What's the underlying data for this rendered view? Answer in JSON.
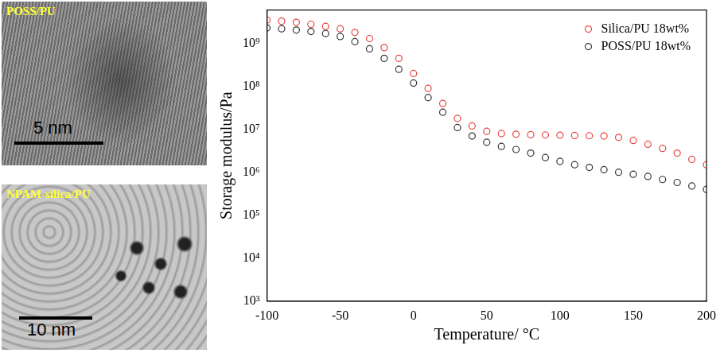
{
  "panels": [
    {
      "label": "POSS/PU",
      "scale_bar": "5 nm"
    },
    {
      "label": "NPAM-silica/PU",
      "scale_bar": "10 nm"
    }
  ],
  "chart_data": {
    "type": "scatter",
    "x_label": "Temperature/ °C",
    "y_label": "Storage modulus/Pa",
    "log": "y",
    "grid": false,
    "legend": "upper right",
    "marker": "circle",
    "xlim": [
      -100,
      200
    ],
    "xticks": [
      -100,
      -50,
      0,
      50,
      100,
      150,
      200
    ],
    "ylim": [
      1000,
      6000000000
    ],
    "yticks": [
      {
        "value": 1000,
        "label": "10³"
      },
      {
        "value": 10000,
        "label": "10⁴"
      },
      {
        "value": 100000,
        "label": "10⁵"
      },
      {
        "value": 1000000,
        "label": "10⁶"
      },
      {
        "value": 10000000,
        "label": "10⁷"
      },
      {
        "value": 100000000,
        "label": "10⁸"
      },
      {
        "value": 1000000000,
        "label": "10⁹"
      }
    ],
    "series": [
      {
        "name": "Silica/PU 18wt%",
        "color": "#e8433f",
        "x": [
          -100,
          -90,
          -80,
          -70,
          -60,
          -50,
          -40,
          -30,
          -20,
          -10,
          0,
          10,
          20,
          30,
          40,
          50,
          60,
          70,
          80,
          90,
          100,
          110,
          120,
          130,
          140,
          150,
          160,
          170,
          180,
          190,
          200
        ],
        "values": [
          3500000000,
          3300000000,
          3100000000,
          2800000000,
          2500000000,
          2200000000,
          1800000000,
          1300000000,
          800000000,
          450000000,
          200000000,
          90000000,
          40000000,
          18000000,
          12000000,
          9000000,
          8000000,
          7700000,
          7500000,
          7400000,
          7300000,
          7200000,
          7100000,
          7000000,
          6500000,
          5500000,
          4500000,
          3600000,
          2800000,
          2000000,
          1500000
        ]
      },
      {
        "name": "POSS/PU 18wt%",
        "color": "#333333",
        "x": [
          -100,
          -90,
          -80,
          -70,
          -60,
          -50,
          -40,
          -30,
          -20,
          -10,
          0,
          10,
          20,
          30,
          40,
          50,
          60,
          70,
          80,
          90,
          100,
          110,
          120,
          130,
          140,
          150,
          160,
          170,
          180,
          190,
          200
        ],
        "values": [
          2300000000,
          2200000000,
          2050000000,
          1900000000,
          1700000000,
          1450000000,
          1100000000,
          750000000,
          450000000,
          250000000,
          120000000,
          55000000,
          25000000,
          11000000,
          7000000,
          5000000,
          4000000,
          3400000,
          2800000,
          2200000,
          1800000,
          1500000,
          1300000,
          1150000,
          1000000,
          900000,
          800000,
          680000,
          580000,
          480000,
          400000
        ]
      }
    ]
  }
}
